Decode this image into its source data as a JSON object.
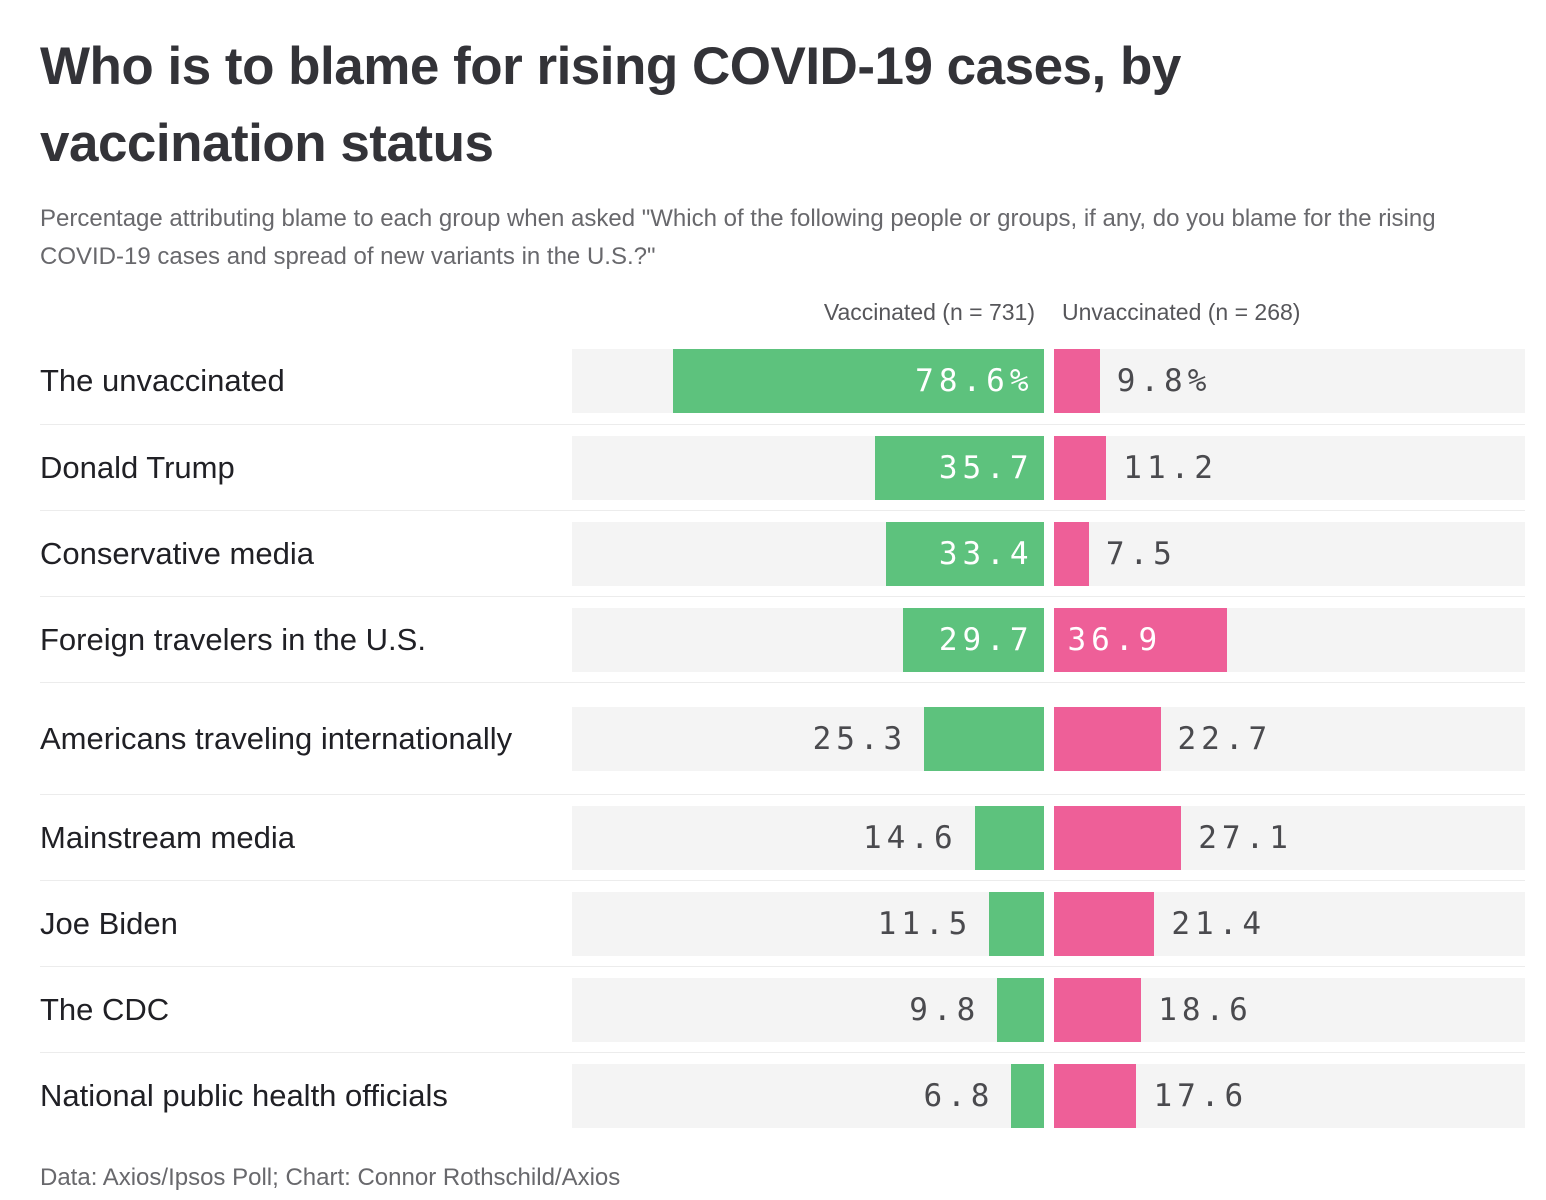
{
  "header": {
    "title": "Who is to blame for rising COVID-19 cases, by vaccination status",
    "subtitle": "Percentage attributing blame to each group when asked \"Which of the following people or groups, if any, do you blame for the rising COVID-19 cases and spread of new variants in the U.S.?\""
  },
  "footer": {
    "credit": "Data: Axios/Ipsos Poll; Chart: Connor Rothschild/Axios"
  },
  "colors": {
    "vaccinated_green": "#5dc27d",
    "unvaccinated_pink": "#ee5f98",
    "track_background": "#f4f4f4",
    "row_separator": "#ececec"
  },
  "chart_data": {
    "type": "bar",
    "variant": "diverging-horizontal-paired",
    "title": "Who is to blame for rising COVID-19 cases, by vaccination status",
    "xlabel": "",
    "ylabel": "",
    "xlim": [
      0,
      100
    ],
    "grid": false,
    "legend_position": "top",
    "categories": [
      "The unvaccinated",
      "Donald Trump",
      "Conservative media",
      "Foreign travelers in the U.S.",
      "Americans traveling internationally",
      "Mainstream media",
      "Joe Biden",
      "The CDC",
      "National public health officials"
    ],
    "series": [
      {
        "key": "vaccinated",
        "name": "Vaccinated (n = 731)",
        "color": "#5dc27d",
        "values": [
          78.6,
          35.7,
          33.4,
          29.7,
          25.3,
          14.6,
          11.5,
          9.8,
          6.8
        ],
        "display": [
          "78.6%",
          "35.7",
          "33.4",
          "29.7",
          "25.3",
          "14.6",
          "11.5",
          "9.8",
          "6.8"
        ],
        "label_inside": [
          true,
          true,
          true,
          true,
          false,
          false,
          false,
          false,
          false
        ]
      },
      {
        "key": "unvaccinated",
        "name": "Unvaccinated (n = 268)",
        "color": "#ee5f98",
        "values": [
          9.8,
          11.2,
          7.5,
          36.9,
          22.7,
          27.1,
          21.4,
          18.6,
          17.6
        ],
        "display": [
          "9.8%",
          "11.2",
          "7.5",
          "36.9",
          "22.7",
          "27.1",
          "21.4",
          "18.6",
          "17.6"
        ],
        "label_inside": [
          false,
          false,
          false,
          true,
          false,
          false,
          false,
          false,
          false
        ]
      }
    ]
  }
}
